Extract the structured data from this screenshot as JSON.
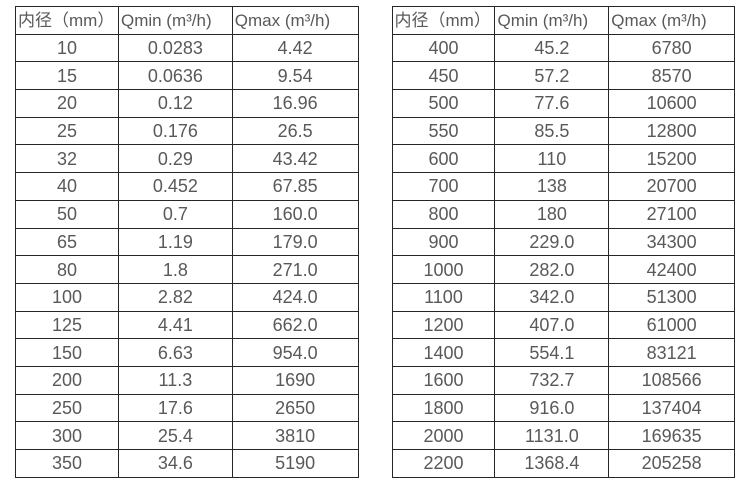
{
  "page": {
    "background": "#ffffff",
    "border_color": "#262626",
    "text_color": "#595959"
  },
  "tables": [
    {
      "name": "flow-table-small-diameters",
      "headers": [
        "内径（mm）",
        "Qmin (m³/h)",
        "Qmax (m³/h)"
      ],
      "rows": [
        [
          "10",
          "0.0283",
          "4.42"
        ],
        [
          "15",
          "0.0636",
          "9.54"
        ],
        [
          "20",
          "0.12",
          "16.96"
        ],
        [
          "25",
          "0.176",
          "26.5"
        ],
        [
          "32",
          "0.29",
          "43.42"
        ],
        [
          "40",
          "0.452",
          "67.85"
        ],
        [
          "50",
          "0.7",
          "160.0"
        ],
        [
          "65",
          "1.19",
          "179.0"
        ],
        [
          "80",
          "1.8",
          "271.0"
        ],
        [
          "100",
          "2.82",
          "424.0"
        ],
        [
          "125",
          "4.41",
          "662.0"
        ],
        [
          "150",
          "6.63",
          "954.0"
        ],
        [
          "200",
          "11.3",
          "1690"
        ],
        [
          "250",
          "17.6",
          "2650"
        ],
        [
          "300",
          "25.4",
          "3810"
        ],
        [
          "350",
          "34.6",
          "5190"
        ]
      ]
    },
    {
      "name": "flow-table-large-diameters",
      "headers": [
        "内径（mm）",
        "Qmin (m³/h)",
        "Qmax (m³/h)"
      ],
      "rows": [
        [
          "400",
          "45.2",
          "6780"
        ],
        [
          "450",
          "57.2",
          "8570"
        ],
        [
          "500",
          "77.6",
          "10600"
        ],
        [
          "550",
          "85.5",
          "12800"
        ],
        [
          "600",
          "110",
          "15200"
        ],
        [
          "700",
          "138",
          "20700"
        ],
        [
          "800",
          "180",
          "27100"
        ],
        [
          "900",
          "229.0",
          "34300"
        ],
        [
          "1000",
          "282.0",
          "42400"
        ],
        [
          "1100",
          "342.0",
          "51300"
        ],
        [
          "1200",
          "407.0",
          "61000"
        ],
        [
          "1400",
          "554.1",
          "83121"
        ],
        [
          "1600",
          "732.7",
          "108566"
        ],
        [
          "1800",
          "916.0",
          "137404"
        ],
        [
          "2000",
          "1131.0",
          "169635"
        ],
        [
          "2200",
          "1368.4",
          "205258"
        ]
      ]
    }
  ]
}
